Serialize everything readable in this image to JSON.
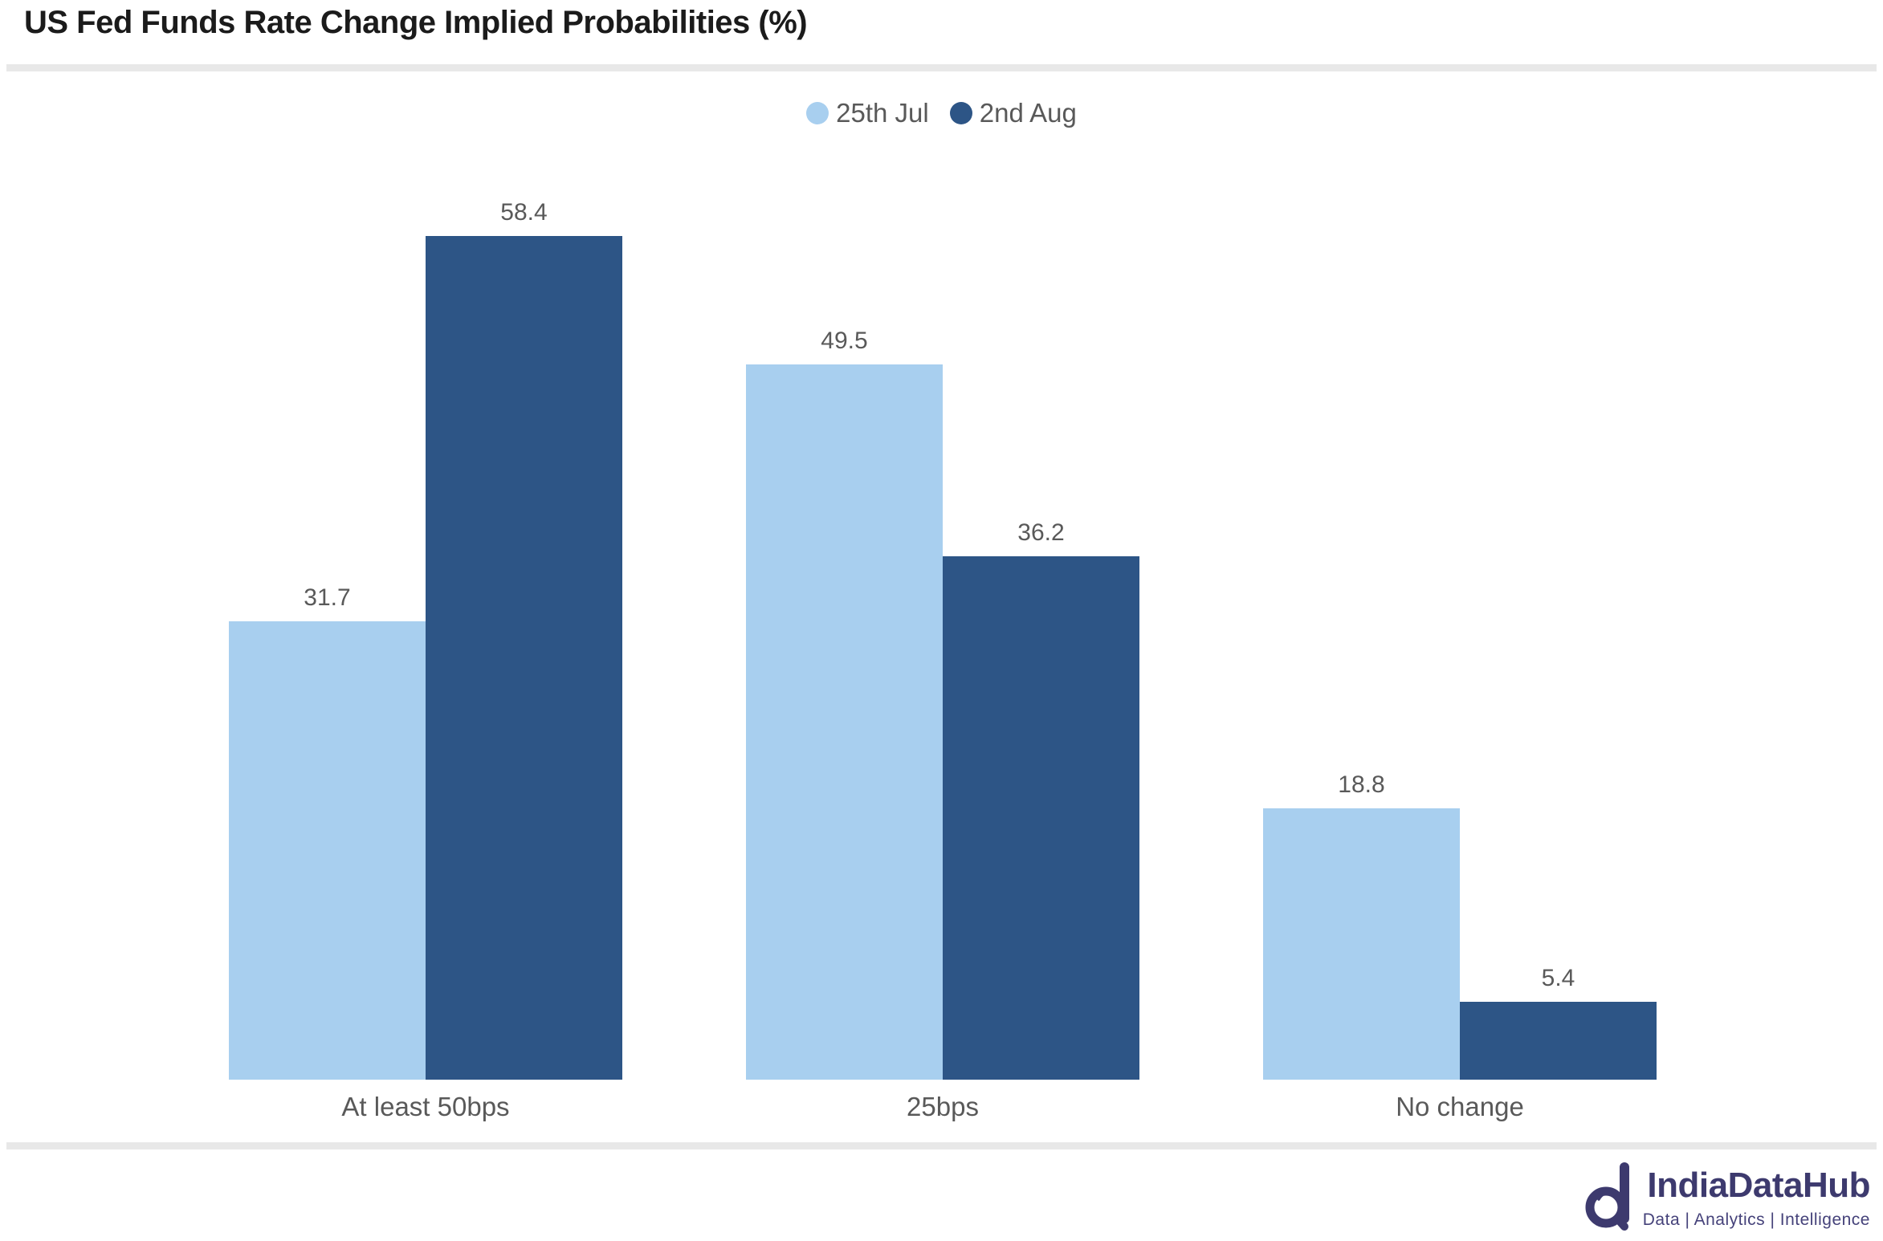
{
  "header": {
    "title": "US Fed Funds Rate Change Implied Probabilities (%)"
  },
  "legend": [
    {
      "label": "25th Jul",
      "color": "#a8cfef"
    },
    {
      "label": "2nd Aug",
      "color": "#2d5586"
    }
  ],
  "chart_data": {
    "type": "bar",
    "title": "US Fed Funds Rate Change Implied Probabilities (%)",
    "categories": [
      "At least 50bps",
      "25bps",
      "No change"
    ],
    "series": [
      {
        "name": "25th Jul",
        "color": "#a8cfef",
        "values": [
          31.7,
          49.5,
          18.8
        ]
      },
      {
        "name": "2nd Aug",
        "color": "#2d5586",
        "values": [
          58.4,
          36.2,
          5.4
        ]
      }
    ],
    "value_labels": true,
    "ylabel": "",
    "xlabel": "",
    "ylim": [
      0,
      64
    ],
    "grid": false,
    "legend_position": "top"
  },
  "footer": {
    "brand": "IndiaDataHub",
    "tagline": "Data | Analytics | Intelligence",
    "brand_color": "#3d3a6e"
  }
}
